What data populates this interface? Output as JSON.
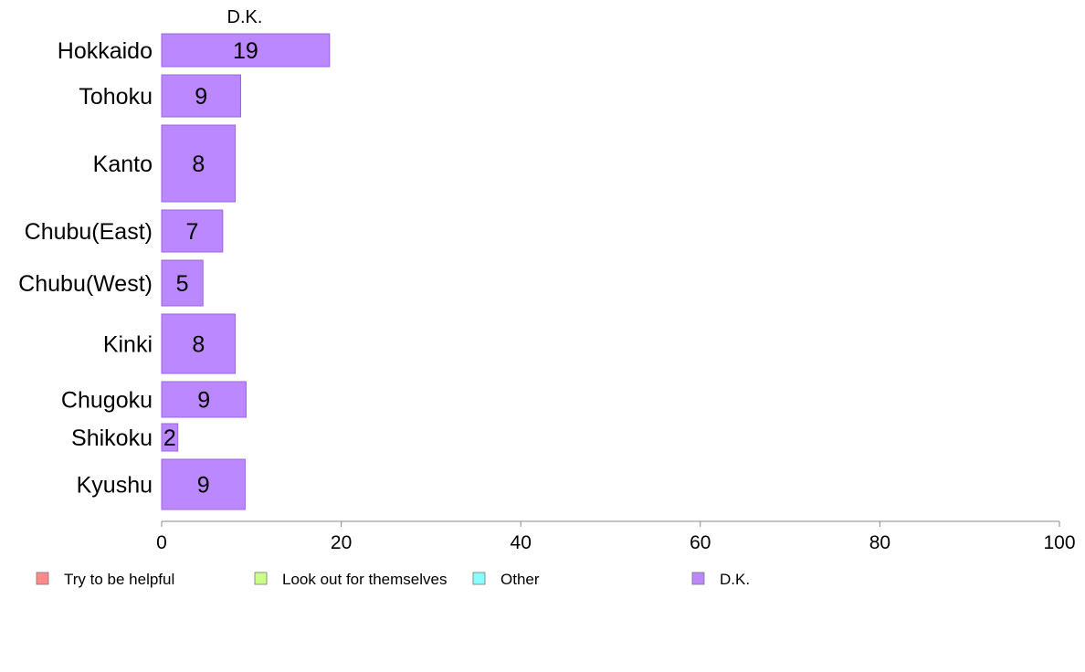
{
  "chart_data": {
    "type": "bar",
    "orientation": "horizontal",
    "title": "",
    "xlabel": "",
    "ylabel": "",
    "xlim": [
      0,
      100
    ],
    "x_ticks": [
      "0",
      "20",
      "40",
      "60",
      "80",
      "100"
    ],
    "grid": false,
    "series_title": "D.K.",
    "categories": [
      "Hokkaido",
      "Tohoku",
      "Kanto",
      "Chubu(East)",
      "Chubu(West)",
      "Kinki",
      "Chugoku",
      "Shikoku",
      "Kyushu"
    ],
    "series": [
      {
        "name": "D.K.",
        "color": "#bb88ff",
        "values": [
          18.7,
          8.8,
          8.2,
          6.8,
          4.6,
          8.2,
          9.4,
          1.8,
          9.3
        ],
        "labels": [
          "19",
          "9",
          "8",
          "7",
          "5",
          "8",
          "9",
          "2",
          "9"
        ]
      }
    ],
    "legend": {
      "position": "bottom",
      "entries": [
        {
          "label": "Try to be helpful",
          "color": "#ff8a8a"
        },
        {
          "label": "Look out for themselves",
          "color": "#ccff88"
        },
        {
          "label": "Other",
          "color": "#88ffff"
        },
        {
          "label": "D.K.",
          "color": "#bb88ff"
        }
      ]
    }
  }
}
